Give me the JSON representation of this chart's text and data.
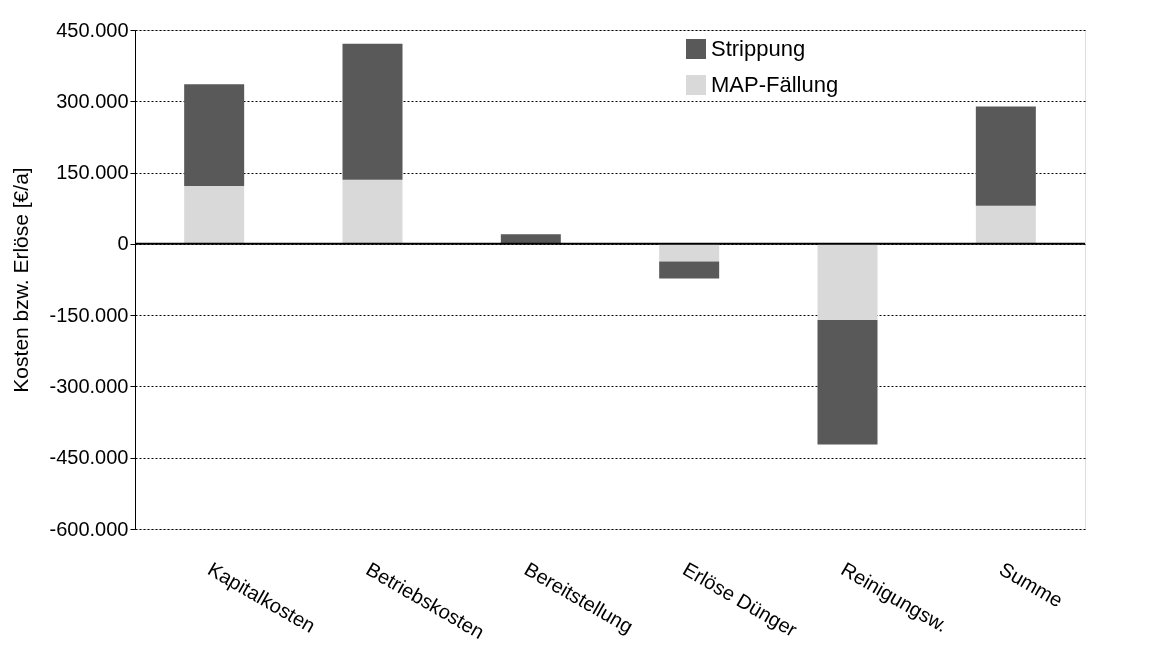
{
  "chart_data": {
    "type": "bar",
    "stacked": true,
    "ylabel": "Kosten bzw. Erlöse [€/a]",
    "categories": [
      "Kapitalkosten",
      "Betriebskosten",
      "Bereitstellung",
      "Erlöse Dünger",
      "Reinigungsw.",
      "Summe"
    ],
    "series": [
      {
        "name": "MAP-Fällung",
        "color": "#d9d9d9",
        "values": [
          122000,
          135000,
          0,
          -37000,
          -160000,
          80000
        ]
      },
      {
        "name": "Strippung",
        "color": "#595959",
        "values": [
          214000,
          286000,
          20000,
          -36000,
          -262000,
          209000
        ]
      }
    ],
    "ylim": [
      -600000,
      450000
    ],
    "yticks": [
      {
        "value": -600000,
        "label": "-600.000"
      },
      {
        "value": -450000,
        "label": "-450.000"
      },
      {
        "value": -300000,
        "label": "-300.000"
      },
      {
        "value": -150000,
        "label": "-150.000"
      },
      {
        "value": 0,
        "label": "0"
      },
      {
        "value": 150000,
        "label": "150.000"
      },
      {
        "value": 300000,
        "label": "300.000"
      },
      {
        "value": 450000,
        "label": "450.000"
      }
    ],
    "grid": "y",
    "legend": "top right"
  }
}
